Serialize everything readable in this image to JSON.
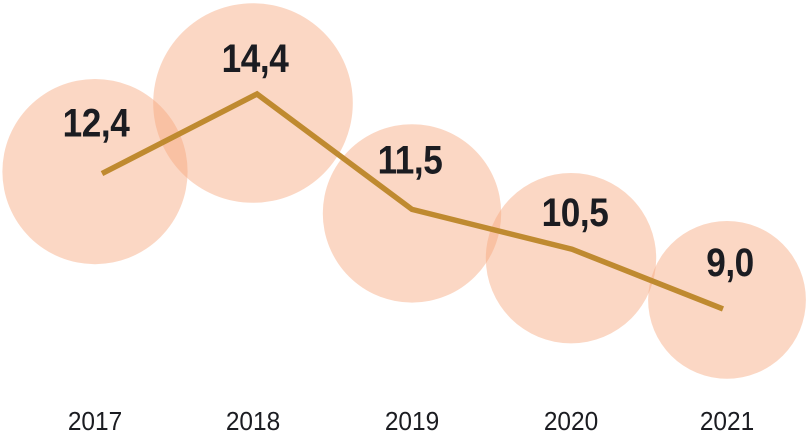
{
  "chart_data": {
    "type": "line",
    "subtype": "line-with-proportional-bubble-markers",
    "title": "",
    "xlabel": "",
    "ylabel": "",
    "categories": [
      "2017",
      "2018",
      "2019",
      "2020",
      "2021"
    ],
    "values": [
      12.4,
      14.4,
      11.5,
      10.5,
      9.0
    ],
    "value_labels": [
      "12,4",
      "14,4",
      "11,5",
      "10,5",
      "9,0"
    ],
    "series": [
      {
        "name": "value-per-year",
        "values": [
          12.4,
          14.4,
          11.5,
          10.5,
          9.0
        ]
      }
    ],
    "decimal_separator": ",",
    "legend_visible": false,
    "grid": false,
    "axes_visible": false,
    "ylim_implied": [
      8,
      15
    ],
    "bubble_area_proportional_to_value": true,
    "colors": {
      "bubble_fill": "#F6A77D",
      "bubble_opacity": 0.45,
      "line": "#BF8A30",
      "label_text": "#1B1C21",
      "background": "#FFFFFF"
    }
  }
}
